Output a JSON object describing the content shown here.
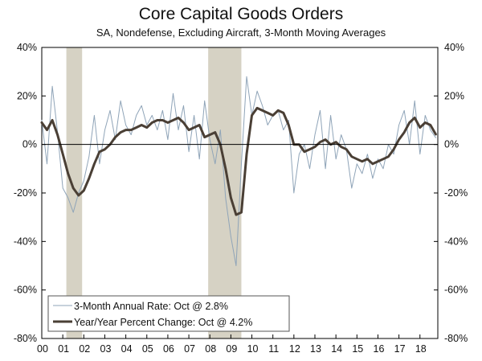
{
  "header": {
    "title": "Core Capital Goods Orders",
    "subtitle": "SA, Nondefense, Excluding Aircraft, 3-Month Moving Averages"
  },
  "chart_data": {
    "type": "line",
    "title": "Core Capital Goods Orders",
    "subtitle": "SA, Nondefense, Excluding Aircraft, 3-Month Moving Averages",
    "xlabel": "",
    "ylabel": "",
    "xlim": [
      2000.0,
      2018.85
    ],
    "ylim": [
      -80,
      40
    ],
    "y_ticks": [
      40,
      20,
      0,
      -20,
      -40,
      -60,
      -80
    ],
    "y_tick_labels": [
      "40%",
      "20%",
      "0%",
      "-20%",
      "-40%",
      "-60%",
      "-80%"
    ],
    "x_ticks": [
      2000,
      2001,
      2002,
      2003,
      2004,
      2005,
      2006,
      2007,
      2008,
      2009,
      2010,
      2011,
      2012,
      2013,
      2014,
      2015,
      2016,
      2017,
      2018
    ],
    "x_tick_labels": [
      "00",
      "01",
      "02",
      "03",
      "04",
      "05",
      "06",
      "07",
      "08",
      "09",
      "10",
      "11",
      "12",
      "13",
      "14",
      "15",
      "16",
      "17",
      "18"
    ],
    "recessions": [
      [
        2001.17,
        2001.92
      ],
      [
        2007.92,
        2009.5
      ]
    ],
    "legend_position": "bottom-left",
    "colors": {
      "annual_rate": "#8fa4b8",
      "yoy": "#4a3f35",
      "recession": "#d6d2c4",
      "axis": "#000000"
    },
    "series": [
      {
        "name": "3-Month Annual Rate: Oct @ 2.8%",
        "style": "thin",
        "x": [
          2000.0,
          2000.25,
          2000.5,
          2000.75,
          2001.0,
          2001.25,
          2001.5,
          2001.75,
          2002.0,
          2002.25,
          2002.5,
          2002.75,
          2003.0,
          2003.25,
          2003.5,
          2003.75,
          2004.0,
          2004.25,
          2004.5,
          2004.75,
          2005.0,
          2005.25,
          2005.5,
          2005.75,
          2006.0,
          2006.25,
          2006.5,
          2006.75,
          2007.0,
          2007.25,
          2007.5,
          2007.75,
          2008.0,
          2008.25,
          2008.5,
          2008.75,
          2009.0,
          2009.25,
          2009.5,
          2009.75,
          2010.0,
          2010.25,
          2010.5,
          2010.75,
          2011.0,
          2011.25,
          2011.5,
          2011.75,
          2012.0,
          2012.25,
          2012.5,
          2012.75,
          2013.0,
          2013.25,
          2013.5,
          2013.75,
          2014.0,
          2014.25,
          2014.5,
          2014.75,
          2015.0,
          2015.25,
          2015.5,
          2015.75,
          2016.0,
          2016.25,
          2016.5,
          2016.75,
          2017.0,
          2017.25,
          2017.5,
          2017.75,
          2018.0,
          2018.25,
          2018.5,
          2018.75
        ],
        "values": [
          10,
          -8,
          24,
          5,
          -18,
          -22,
          -28,
          -20,
          -15,
          -5,
          12,
          -8,
          6,
          14,
          2,
          18,
          8,
          4,
          12,
          16,
          8,
          12,
          6,
          14,
          2,
          21,
          6,
          16,
          -3,
          12,
          -6,
          18,
          2,
          -8,
          6,
          -22,
          -38,
          -50,
          -8,
          28,
          12,
          22,
          16,
          8,
          12,
          14,
          6,
          10,
          -20,
          -4,
          0,
          -10,
          4,
          14,
          -10,
          12,
          -6,
          4,
          -2,
          -18,
          -8,
          -12,
          -4,
          -14,
          -6,
          -10,
          0,
          -4,
          8,
          14,
          0,
          18,
          -4,
          12,
          6,
          2.8
        ]
      },
      {
        "name": "Year/Year Percent Change: Oct @ 4.2%",
        "style": "thick",
        "x": [
          2000.0,
          2000.25,
          2000.5,
          2000.75,
          2001.0,
          2001.25,
          2001.5,
          2001.75,
          2002.0,
          2002.25,
          2002.5,
          2002.75,
          2003.0,
          2003.25,
          2003.5,
          2003.75,
          2004.0,
          2004.25,
          2004.5,
          2004.75,
          2005.0,
          2005.25,
          2005.5,
          2005.75,
          2006.0,
          2006.25,
          2006.5,
          2006.75,
          2007.0,
          2007.25,
          2007.5,
          2007.75,
          2008.0,
          2008.25,
          2008.5,
          2008.75,
          2009.0,
          2009.25,
          2009.5,
          2009.75,
          2010.0,
          2010.25,
          2010.5,
          2010.75,
          2011.0,
          2011.25,
          2011.5,
          2011.75,
          2012.0,
          2012.25,
          2012.5,
          2012.75,
          2013.0,
          2013.25,
          2013.5,
          2013.75,
          2014.0,
          2014.25,
          2014.5,
          2014.75,
          2015.0,
          2015.25,
          2015.5,
          2015.75,
          2016.0,
          2016.25,
          2016.5,
          2016.75,
          2017.0,
          2017.25,
          2017.5,
          2017.75,
          2018.0,
          2018.25,
          2018.5,
          2018.75
        ],
        "values": [
          9,
          6,
          10,
          4,
          -4,
          -12,
          -18,
          -21,
          -19,
          -14,
          -8,
          -3,
          -2,
          0,
          3,
          5,
          6,
          6,
          7,
          8,
          7,
          9,
          10,
          10,
          9,
          10,
          11,
          9,
          6,
          7,
          8,
          3,
          4,
          5,
          0,
          -10,
          -22,
          -29,
          -28,
          -4,
          12,
          15,
          14,
          13,
          12,
          14,
          13,
          8,
          0,
          0,
          -3,
          -2,
          -1,
          1,
          2,
          0,
          1,
          -1,
          -2,
          -5,
          -6,
          -7,
          -6,
          -8,
          -7,
          -6,
          -5,
          -2,
          2,
          5,
          9,
          11,
          7,
          9,
          8,
          4.2
        ]
      }
    ]
  }
}
